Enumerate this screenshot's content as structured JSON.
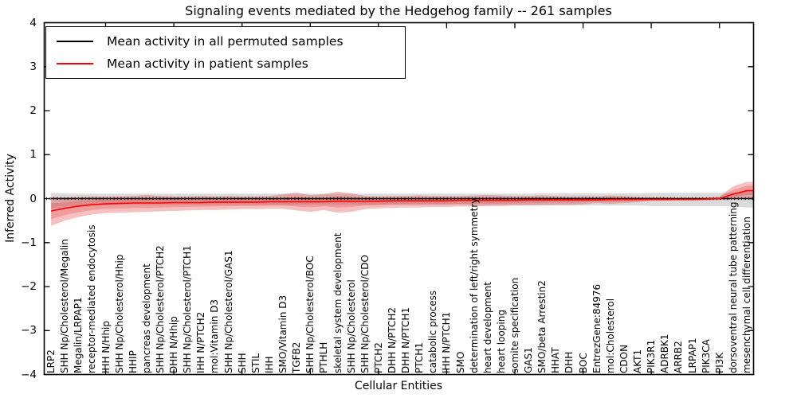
{
  "figure": {
    "kind": "matplotlib-style line plot with confidence bands",
    "background": "#ffffff",
    "frame_color": "#000000"
  },
  "chart_data": {
    "type": "line",
    "title": "Signaling events mediated by the Hedgehog family -- 261 samples",
    "xlabel": "Cellular Entities",
    "ylabel": "Inferred Activity",
    "ylim": [
      -4,
      4
    ],
    "yticks": [
      -4,
      -3,
      -2,
      -1,
      0,
      1,
      2,
      3,
      4
    ],
    "grid": false,
    "legend_position": "upper left",
    "x_tick_label_rotation": 90,
    "categories": [
      "LRP2",
      "SHH Np/Cholesterol/Megalin",
      "Megalin/LRPAP1",
      "receptor-mediated endocytosis",
      "IHH N/Hhip",
      "SHH Np/Cholesterol/Hhip",
      "HHIP",
      "pancreas development",
      "SHH Np/Cholesterol/PTCH2",
      "DHH N/Hhip",
      "SHH Np/Cholesterol/PTCH1",
      "IHH N/PTCH2",
      "mol:Vitamin D3",
      "SHH Np/Cholesterol/GAS1",
      "SHH",
      "STIL",
      "IHH",
      "SMO/Vitamin D3",
      "TGFB2",
      "SHH Np/Cholesterol/BOC",
      "PTHLH",
      "skeletal system development",
      "SHH Np/Cholesterol",
      "SHH Np/Cholesterol/CDO",
      "PTCH2",
      "DHH N/PTCH2",
      "DHH N/PTCH1",
      "PTCH1",
      "catabolic process",
      "IHH N/PTCH1",
      "SMO",
      "determination of left/right symmetry",
      "heart development",
      "heart looping",
      "somite specification",
      "GAS1",
      "SMO/beta Arrestin2",
      "HHAT",
      "DHH",
      "BOC",
      "EntrezGene:84976",
      "mol:Cholesterol",
      "CDON",
      "AKT1",
      "PIK3R1",
      "ADRBK1",
      "ARRB2",
      "LRPAP1",
      "PIK3CA",
      "PI3K",
      "dorsoventral neural tube patterning",
      "mesenchymal cell differentiation"
    ],
    "series": [
      {
        "name": "Mean activity in all permuted samples",
        "color": "#000000",
        "band_color": "#999999",
        "values": [
          0,
          0,
          0,
          0,
          0,
          0,
          0,
          0,
          0,
          0,
          0,
          0,
          0,
          0,
          0,
          0,
          0,
          0,
          0,
          0,
          0,
          0,
          0,
          0,
          0,
          0,
          0,
          0,
          0,
          0,
          0,
          0,
          0,
          0,
          0,
          0,
          0,
          0,
          0,
          0,
          0,
          0,
          0,
          0,
          0,
          0,
          0,
          0,
          0,
          0,
          0,
          0
        ],
        "band_low": [
          -0.22,
          -0.18,
          -0.16,
          -0.15,
          -0.14,
          -0.14,
          -0.14,
          -0.14,
          -0.14,
          -0.14,
          -0.14,
          -0.14,
          -0.14,
          -0.14,
          -0.14,
          -0.14,
          -0.14,
          -0.14,
          -0.14,
          -0.14,
          -0.14,
          -0.14,
          -0.14,
          -0.14,
          -0.14,
          -0.14,
          -0.14,
          -0.14,
          -0.14,
          -0.14,
          -0.14,
          -0.15,
          -0.15,
          -0.15,
          -0.15,
          -0.15,
          -0.15,
          -0.16,
          -0.16,
          -0.16,
          -0.16,
          -0.16,
          -0.16,
          -0.16,
          -0.17,
          -0.17,
          -0.17,
          -0.17,
          -0.17,
          -0.17,
          -0.18,
          -0.2
        ],
        "band_high": [
          0.13,
          0.12,
          0.11,
          0.11,
          0.11,
          0.11,
          0.11,
          0.11,
          0.11,
          0.11,
          0.11,
          0.11,
          0.11,
          0.11,
          0.11,
          0.11,
          0.11,
          0.11,
          0.11,
          0.11,
          0.11,
          0.11,
          0.11,
          0.11,
          0.11,
          0.11,
          0.11,
          0.11,
          0.11,
          0.11,
          0.11,
          0.11,
          0.11,
          0.11,
          0.11,
          0.11,
          0.12,
          0.12,
          0.12,
          0.12,
          0.12,
          0.12,
          0.12,
          0.12,
          0.13,
          0.13,
          0.13,
          0.13,
          0.13,
          0.13,
          0.14,
          0.16
        ]
      },
      {
        "name": "Mean activity in patient samples",
        "color": "#ff0000",
        "band_color": "#e03030",
        "values": [
          -0.28,
          -0.22,
          -0.17,
          -0.14,
          -0.12,
          -0.11,
          -0.1,
          -0.1,
          -0.1,
          -0.09,
          -0.09,
          -0.09,
          -0.08,
          -0.08,
          -0.08,
          -0.08,
          -0.07,
          -0.07,
          -0.07,
          -0.07,
          -0.07,
          -0.06,
          -0.06,
          -0.06,
          -0.06,
          -0.05,
          -0.05,
          -0.05,
          -0.05,
          -0.05,
          -0.04,
          -0.04,
          -0.04,
          -0.04,
          -0.04,
          -0.03,
          -0.03,
          -0.03,
          -0.03,
          -0.03,
          -0.03,
          -0.02,
          -0.02,
          -0.02,
          -0.02,
          -0.02,
          -0.02,
          -0.02,
          -0.01,
          0.0,
          0.1,
          0.18
        ],
        "band_low": [
          -0.62,
          -0.5,
          -0.42,
          -0.36,
          -0.33,
          -0.32,
          -0.31,
          -0.3,
          -0.29,
          -0.28,
          -0.27,
          -0.26,
          -0.26,
          -0.25,
          -0.24,
          -0.24,
          -0.23,
          -0.23,
          -0.27,
          -0.3,
          -0.26,
          -0.32,
          -0.3,
          -0.24,
          -0.22,
          -0.21,
          -0.2,
          -0.2,
          -0.19,
          -0.19,
          -0.18,
          -0.18,
          -0.17,
          -0.17,
          -0.16,
          -0.16,
          -0.15,
          -0.14,
          -0.14,
          -0.13,
          -0.1,
          -0.12,
          -0.1,
          -0.08,
          -0.05,
          -0.05,
          -0.04,
          -0.04,
          -0.04,
          -0.03,
          -0.02,
          0.0
        ],
        "band_high": [
          0.04,
          0.03,
          0.04,
          0.05,
          0.05,
          0.05,
          0.06,
          0.08,
          0.06,
          0.05,
          0.05,
          0.06,
          0.05,
          0.06,
          0.05,
          0.05,
          0.06,
          0.1,
          0.14,
          0.08,
          0.1,
          0.16,
          0.12,
          0.06,
          0.05,
          0.06,
          0.06,
          0.07,
          0.06,
          0.06,
          0.06,
          0.07,
          0.08,
          0.07,
          0.06,
          0.06,
          0.07,
          0.06,
          0.05,
          0.06,
          0.05,
          0.07,
          0.06,
          0.04,
          0.03,
          0.03,
          0.02,
          0.02,
          0.02,
          0.04,
          0.28,
          0.38
        ]
      }
    ],
    "band_inner_fraction": 0.55
  }
}
